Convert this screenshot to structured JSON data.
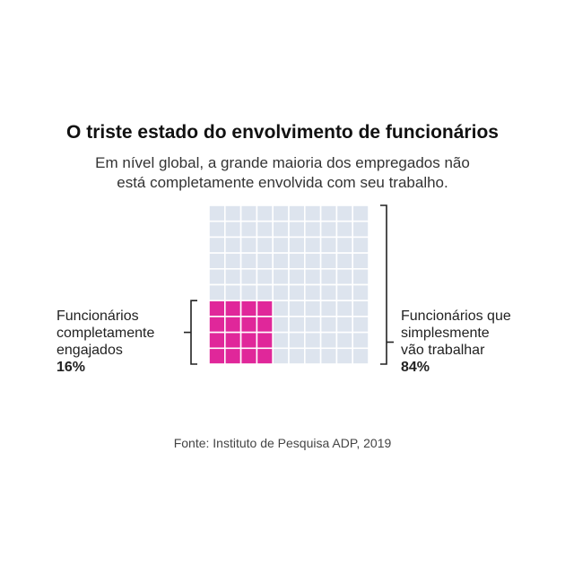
{
  "chart_data": {
    "type": "waffle",
    "title": "O triste estado do envolvimento de funcionários",
    "subtitle": [
      "Em nível global, a grande maioria dos empregados não",
      "está completamente envolvida com seu trabalho."
    ],
    "grid": {
      "columns": 10,
      "rows": 10
    },
    "series": [
      {
        "name": [
          "Funcionários",
          "completamente",
          "engajados"
        ],
        "value_label": "16%",
        "value": 16,
        "color": "#e0279a"
      },
      {
        "name": [
          "Funcionários que",
          "simplesmente",
          "vão trabalhar"
        ],
        "value_label": "84%",
        "value": 84,
        "color": "#dde4ee"
      }
    ],
    "source": "Fonte: Instituto de Pesquisa ADP, 2019"
  },
  "colors": {
    "grid_line": "#ffffff",
    "bracket": "#222222"
  }
}
